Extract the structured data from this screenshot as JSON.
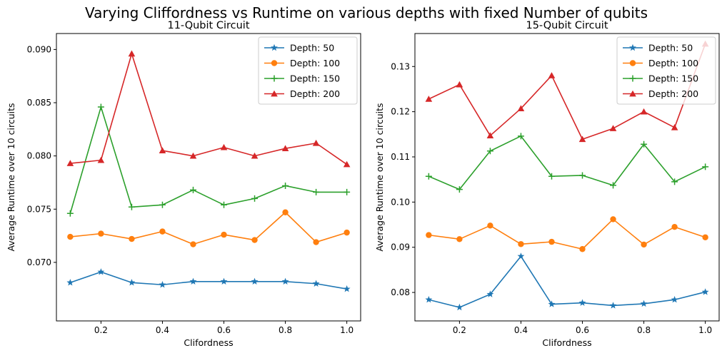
{
  "figure": {
    "suptitle": "Varying Cliffordness vs Runtime on various depths with fixed Number of qubits"
  },
  "chart_data": [
    {
      "type": "line",
      "title": "11-Qubit Circuit",
      "xlabel": "Clifordness",
      "ylabel": "Average Runtime over 10 circuits",
      "x": [
        0.1,
        0.2,
        0.3,
        0.4,
        0.5,
        0.6,
        0.7,
        0.8,
        0.9,
        1.0
      ],
      "xlim": [
        0.055,
        1.045
      ],
      "ylim": [
        0.0645,
        0.0915
      ],
      "xticks": [
        0.2,
        0.4,
        0.6,
        0.8,
        1.0
      ],
      "xtick_labels": [
        "0.2",
        "0.4",
        "0.6",
        "0.8",
        "1.0"
      ],
      "yticks": [
        0.07,
        0.075,
        0.08,
        0.085,
        0.09
      ],
      "ytick_labels": [
        "0.070",
        "0.075",
        "0.080",
        "0.085",
        "0.090"
      ],
      "legend_position": "top-right",
      "grid": false,
      "series": [
        {
          "name": "Depth: 50",
          "marker": "star",
          "color": "#1f77b4",
          "values": [
            0.0681,
            0.0691,
            0.0681,
            0.0679,
            0.0682,
            0.0682,
            0.0682,
            0.0682,
            0.068,
            0.0675
          ]
        },
        {
          "name": "Depth: 100",
          "marker": "circle",
          "color": "#ff7f0e",
          "values": [
            0.0724,
            0.0727,
            0.0722,
            0.0729,
            0.0717,
            0.0726,
            0.0721,
            0.0747,
            0.0719,
            0.0728
          ]
        },
        {
          "name": "Depth: 150",
          "marker": "plus",
          "color": "#2ca02c",
          "values": [
            0.0746,
            0.0846,
            0.0752,
            0.0754,
            0.0768,
            0.0754,
            0.076,
            0.0772,
            0.0766,
            0.0766
          ]
        },
        {
          "name": "Depth: 200",
          "marker": "triangle",
          "color": "#d62728",
          "values": [
            0.0793,
            0.0796,
            0.0896,
            0.0805,
            0.08,
            0.0808,
            0.08,
            0.0807,
            0.0812,
            0.0792
          ]
        }
      ]
    },
    {
      "type": "line",
      "title": "15-Qubit Circuit",
      "xlabel": "Clifordness",
      "ylabel": "Average Runtime over 10 circuits",
      "x": [
        0.1,
        0.2,
        0.3,
        0.4,
        0.5,
        0.6,
        0.7,
        0.8,
        0.9,
        1.0
      ],
      "xlim": [
        0.055,
        1.045
      ],
      "ylim": [
        0.0737,
        0.1373
      ],
      "xticks": [
        0.2,
        0.4,
        0.6,
        0.8,
        1.0
      ],
      "xtick_labels": [
        "0.2",
        "0.4",
        "0.6",
        "0.8",
        "1.0"
      ],
      "yticks": [
        0.08,
        0.09,
        0.1,
        0.11,
        0.12,
        0.13
      ],
      "ytick_labels": [
        "0.08",
        "0.09",
        "0.10",
        "0.11",
        "0.12",
        "0.13"
      ],
      "legend_position": "top-right",
      "grid": false,
      "series": [
        {
          "name": "Depth: 50",
          "marker": "star",
          "color": "#1f77b4",
          "values": [
            0.0784,
            0.0767,
            0.0796,
            0.088,
            0.0774,
            0.0777,
            0.0771,
            0.0775,
            0.0784,
            0.0801
          ]
        },
        {
          "name": "Depth: 100",
          "marker": "circle",
          "color": "#ff7f0e",
          "values": [
            0.0927,
            0.0918,
            0.0948,
            0.0907,
            0.0912,
            0.0896,
            0.0962,
            0.0906,
            0.0945,
            0.0922
          ]
        },
        {
          "name": "Depth: 150",
          "marker": "plus",
          "color": "#2ca02c",
          "values": [
            0.1057,
            0.1028,
            0.1113,
            0.1146,
            0.1057,
            0.1059,
            0.1037,
            0.1128,
            0.1045,
            0.1078
          ]
        },
        {
          "name": "Depth: 200",
          "marker": "triangle",
          "color": "#d62728",
          "values": [
            0.1228,
            0.126,
            0.1147,
            0.1207,
            0.128,
            0.1139,
            0.1163,
            0.12,
            0.1165,
            0.135
          ]
        }
      ]
    }
  ]
}
